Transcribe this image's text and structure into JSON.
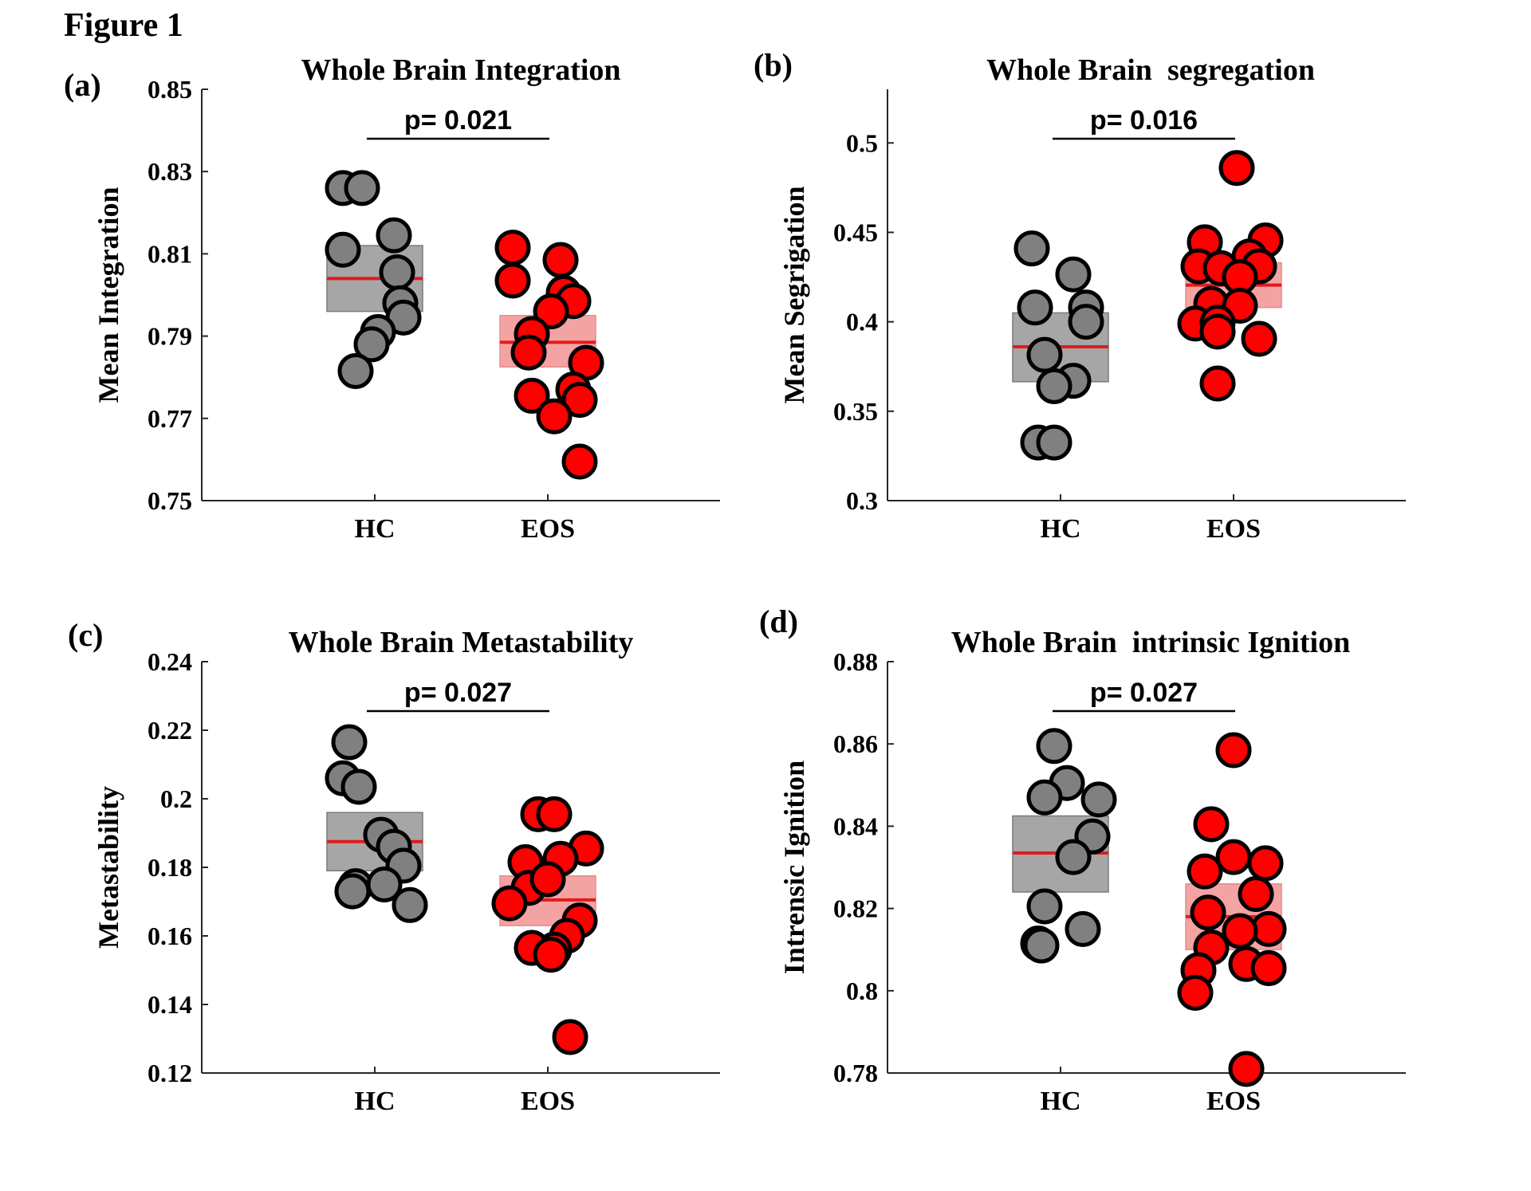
{
  "figure_title": "Figure 1",
  "colors": {
    "hc_fill": "#808080",
    "eos_fill": "#ff0000",
    "hc_box": "#a6a6a6",
    "eos_box": "#f4a3a3",
    "mean_line": "#e31a1c",
    "marker_edge": "#000000"
  },
  "chart_data": [
    {
      "panel": "(a)",
      "type": "scatter",
      "title": "Whole Brain Integration",
      "ylabel": "Mean Integration",
      "xlabel": "",
      "ylim": [
        0.75,
        0.85
      ],
      "yticks": [
        0.75,
        0.77,
        0.79,
        0.81,
        0.83,
        0.85
      ],
      "ytick_labels": [
        "0.75",
        "0.77",
        "0.79",
        "0.81",
        "0.83",
        "0.85"
      ],
      "categories": [
        "HC",
        "EOS"
      ],
      "p_value_label": "p= 0.021",
      "series": [
        {
          "name": "HC",
          "mean": 0.804,
          "box": [
            0.796,
            0.812
          ],
          "points": [
            {
              "x": -0.2,
              "y": 0.826
            },
            {
              "x": -0.08,
              "y": 0.826
            },
            {
              "x": 0.12,
              "y": 0.8145
            },
            {
              "x": -0.2,
              "y": 0.811
            },
            {
              "x": 0.14,
              "y": 0.8055
            },
            {
              "x": 0.16,
              "y": 0.798
            },
            {
              "x": 0.18,
              "y": 0.7945
            },
            {
              "x": 0.02,
              "y": 0.791
            },
            {
              "x": -0.02,
              "y": 0.788
            },
            {
              "x": -0.12,
              "y": 0.7815
            }
          ]
        },
        {
          "name": "EOS",
          "mean": 0.7885,
          "box": [
            0.7825,
            0.795
          ],
          "points": [
            {
              "x": -0.22,
              "y": 0.8115
            },
            {
              "x": -0.22,
              "y": 0.8035
            },
            {
              "x": 0.08,
              "y": 0.8085
            },
            {
              "x": 0.1,
              "y": 0.8005
            },
            {
              "x": 0.16,
              "y": 0.7985
            },
            {
              "x": 0.02,
              "y": 0.796
            },
            {
              "x": -0.1,
              "y": 0.7905
            },
            {
              "x": -0.12,
              "y": 0.786
            },
            {
              "x": 0.24,
              "y": 0.7835
            },
            {
              "x": 0.16,
              "y": 0.777
            },
            {
              "x": -0.1,
              "y": 0.7755
            },
            {
              "x": 0.2,
              "y": 0.7745
            },
            {
              "x": 0.04,
              "y": 0.7705
            },
            {
              "x": 0.2,
              "y": 0.7595
            }
          ]
        }
      ]
    },
    {
      "panel": "(b)",
      "type": "scatter",
      "title": "Whole Brain  segregation",
      "ylabel": "Mean Segrigation",
      "xlabel": "",
      "ylim": [
        0.3,
        0.53
      ],
      "yticks": [
        0.3,
        0.35,
        0.4,
        0.45,
        0.5
      ],
      "ytick_labels": [
        "0.3",
        "0.35",
        "0.4",
        "0.45",
        "0.5"
      ],
      "categories": [
        "HC",
        "EOS"
      ],
      "p_value_label": "p= 0.016",
      "series": [
        {
          "name": "HC",
          "mean": 0.386,
          "box": [
            0.3665,
            0.405
          ],
          "points": [
            {
              "x": -0.18,
              "y": 0.441
            },
            {
              "x": 0.08,
              "y": 0.4265
            },
            {
              "x": -0.16,
              "y": 0.408
            },
            {
              "x": 0.16,
              "y": 0.408
            },
            {
              "x": 0.16,
              "y": 0.4
            },
            {
              "x": -0.1,
              "y": 0.3815
            },
            {
              "x": 0.08,
              "y": 0.367
            },
            {
              "x": -0.04,
              "y": 0.364
            },
            {
              "x": -0.14,
              "y": 0.3325
            },
            {
              "x": -0.04,
              "y": 0.3325
            }
          ]
        },
        {
          "name": "EOS",
          "mean": 0.4205,
          "box": [
            0.408,
            0.433
          ],
          "points": [
            {
              "x": 0.02,
              "y": 0.486
            },
            {
              "x": 0.2,
              "y": 0.4455
            },
            {
              "x": -0.18,
              "y": 0.4445
            },
            {
              "x": 0.1,
              "y": 0.4365
            },
            {
              "x": -0.22,
              "y": 0.431
            },
            {
              "x": -0.08,
              "y": 0.43
            },
            {
              "x": 0.16,
              "y": 0.431
            },
            {
              "x": 0.04,
              "y": 0.425
            },
            {
              "x": -0.14,
              "y": 0.41
            },
            {
              "x": 0.04,
              "y": 0.409
            },
            {
              "x": -0.24,
              "y": 0.399
            },
            {
              "x": -0.1,
              "y": 0.3995
            },
            {
              "x": -0.1,
              "y": 0.3945
            },
            {
              "x": 0.16,
              "y": 0.3905
            },
            {
              "x": -0.1,
              "y": 0.3655
            }
          ]
        }
      ]
    },
    {
      "panel": "(c)",
      "type": "scatter",
      "title": "Whole Brain Metastability",
      "ylabel": "Metastability",
      "xlabel": "",
      "ylim": [
        0.12,
        0.24
      ],
      "yticks": [
        0.12,
        0.14,
        0.16,
        0.18,
        0.2,
        0.22,
        0.24
      ],
      "ytick_labels": [
        "0.12",
        "0.14",
        "0.16",
        "0.18",
        "0.2",
        "0.22",
        "0.24"
      ],
      "categories": [
        "HC",
        "EOS"
      ],
      "p_value_label": "p= 0.027",
      "series": [
        {
          "name": "HC",
          "mean": 0.1875,
          "box": [
            0.179,
            0.196
          ],
          "points": [
            {
              "x": -0.16,
              "y": 0.2165
            },
            {
              "x": -0.2,
              "y": 0.206
            },
            {
              "x": -0.1,
              "y": 0.2035
            },
            {
              "x": 0.04,
              "y": 0.1895
            },
            {
              "x": 0.12,
              "y": 0.186
            },
            {
              "x": 0.18,
              "y": 0.1805
            },
            {
              "x": -0.12,
              "y": 0.1745
            },
            {
              "x": 0.06,
              "y": 0.175
            },
            {
              "x": -0.14,
              "y": 0.173
            },
            {
              "x": 0.22,
              "y": 0.169
            }
          ]
        },
        {
          "name": "EOS",
          "mean": 0.1705,
          "box": [
            0.163,
            0.1775
          ],
          "points": [
            {
              "x": -0.06,
              "y": 0.1955
            },
            {
              "x": 0.04,
              "y": 0.1955
            },
            {
              "x": 0.24,
              "y": 0.1855
            },
            {
              "x": 0.08,
              "y": 0.1825
            },
            {
              "x": -0.14,
              "y": 0.1815
            },
            {
              "x": -0.12,
              "y": 0.174
            },
            {
              "x": 0.0,
              "y": 0.1765
            },
            {
              "x": -0.24,
              "y": 0.1695
            },
            {
              "x": 0.2,
              "y": 0.1645
            },
            {
              "x": 0.12,
              "y": 0.16
            },
            {
              "x": 0.04,
              "y": 0.156
            },
            {
              "x": -0.1,
              "y": 0.1565
            },
            {
              "x": 0.02,
              "y": 0.1545
            },
            {
              "x": 0.14,
              "y": 0.1305
            }
          ]
        }
      ]
    },
    {
      "panel": "(d)",
      "type": "scatter",
      "title": "Whole Brain  intrinsic Ignition",
      "ylabel": "Intrensic Ignition",
      "xlabel": "",
      "ylim": [
        0.78,
        0.88
      ],
      "yticks": [
        0.78,
        0.8,
        0.82,
        0.84,
        0.86,
        0.88
      ],
      "ytick_labels": [
        "0.78",
        "0.8",
        "0.82",
        "0.84",
        "0.86",
        "0.88"
      ],
      "categories": [
        "HC",
        "EOS"
      ],
      "p_value_label": "p= 0.027",
      "series": [
        {
          "name": "HC",
          "mean": 0.8335,
          "box": [
            0.824,
            0.8425
          ],
          "points": [
            {
              "x": -0.04,
              "y": 0.8595
            },
            {
              "x": 0.04,
              "y": 0.8505
            },
            {
              "x": -0.1,
              "y": 0.847
            },
            {
              "x": 0.24,
              "y": 0.8465
            },
            {
              "x": 0.2,
              "y": 0.8375
            },
            {
              "x": 0.08,
              "y": 0.8325
            },
            {
              "x": -0.1,
              "y": 0.8205
            },
            {
              "x": 0.14,
              "y": 0.815
            },
            {
              "x": -0.14,
              "y": 0.8115
            },
            {
              "x": -0.12,
              "y": 0.811
            }
          ]
        },
        {
          "name": "EOS",
          "mean": 0.818,
          "box": [
            0.81,
            0.826
          ],
          "points": [
            {
              "x": 0.0,
              "y": 0.8585
            },
            {
              "x": -0.14,
              "y": 0.8405
            },
            {
              "x": -0.18,
              "y": 0.829
            },
            {
              "x": 0.0,
              "y": 0.8325
            },
            {
              "x": 0.2,
              "y": 0.831
            },
            {
              "x": 0.14,
              "y": 0.8235
            },
            {
              "x": -0.16,
              "y": 0.819
            },
            {
              "x": 0.22,
              "y": 0.815
            },
            {
              "x": 0.04,
              "y": 0.8145
            },
            {
              "x": -0.14,
              "y": 0.8105
            },
            {
              "x": 0.08,
              "y": 0.8065
            },
            {
              "x": 0.22,
              "y": 0.8055
            },
            {
              "x": -0.22,
              "y": 0.805
            },
            {
              "x": -0.24,
              "y": 0.7995
            },
            {
              "x": 0.08,
              "y": 0.781
            }
          ]
        }
      ]
    }
  ]
}
